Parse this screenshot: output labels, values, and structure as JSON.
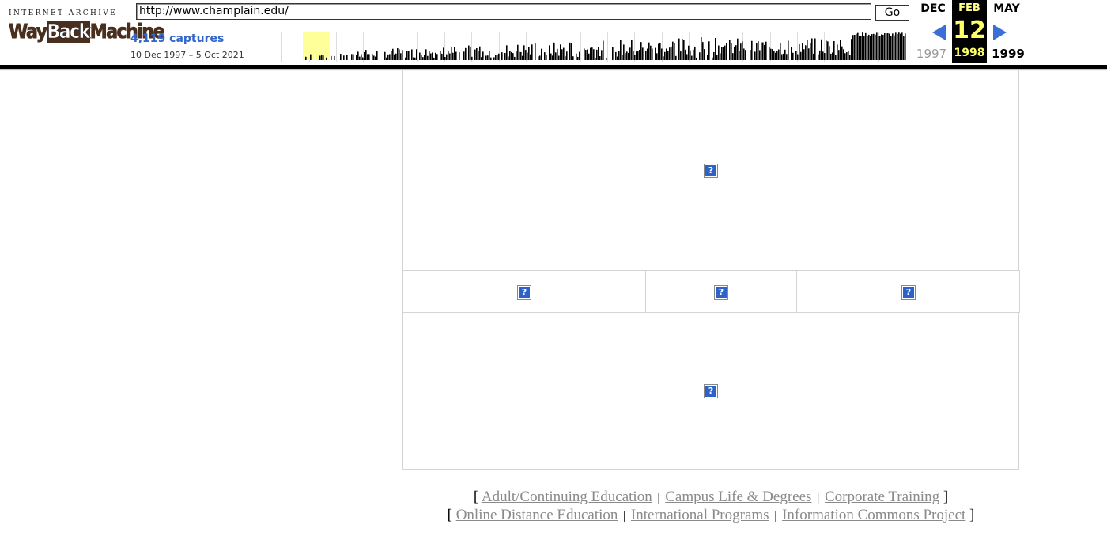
{
  "wayback": {
    "logo_top": "INTERNET ARCHIVE",
    "logo_way": "Way",
    "logo_back": "Back",
    "logo_machine": "Machine",
    "url_value": "http://www.champlain.edu/",
    "go_label": "Go",
    "captures_label": "4,119 captures",
    "captures_range": "10 Dec 1997 – 5 Oct 2021",
    "prev_month": "DEC",
    "current_month": "FEB",
    "next_month": "MAY",
    "current_day": "12",
    "prev_year": "1997",
    "current_year": "1998",
    "next_year": "1999",
    "colors": {
      "accent": "#3366cc",
      "highlight": "#ffff66",
      "arrow": "#3a6fd8"
    }
  },
  "content": {
    "broken_image_glyph": "?",
    "broken_image_icon": "broken-image-icon"
  },
  "footer": {
    "line1": {
      "open": "[",
      "links": [
        "Adult/Continuing Education",
        "Campus Life & Degrees",
        "Corporate Training"
      ],
      "close": "]"
    },
    "line2": {
      "open": "[",
      "links": [
        "Online Distance Education",
        "International Programs",
        "Information Commons Project"
      ],
      "close": "]"
    },
    "separator": "|"
  }
}
